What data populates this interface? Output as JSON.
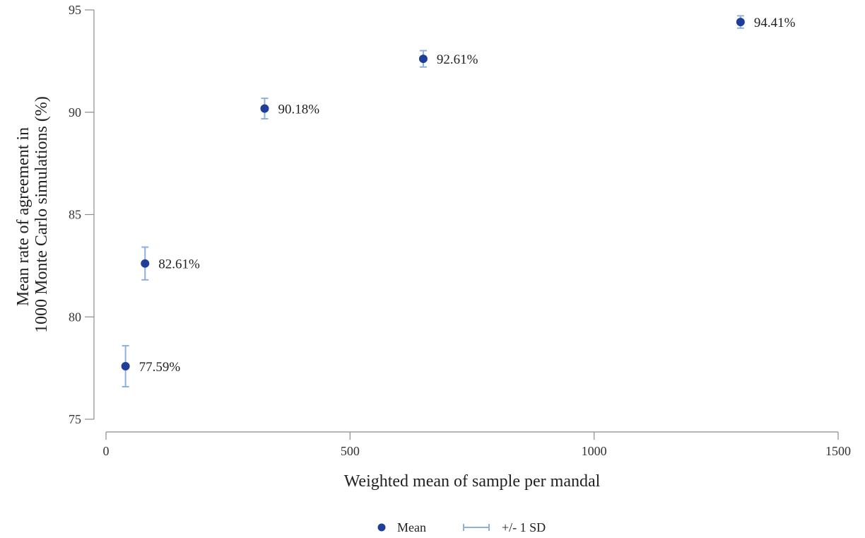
{
  "chart_data": {
    "type": "scatter",
    "xlabel": "Weighted mean of sample per mandal",
    "ylabel_lines": [
      "Mean rate of agreement in",
      "1000 Monte Carlo simulations (%)"
    ],
    "xlim": [
      0,
      1500
    ],
    "ylim": [
      75,
      95
    ],
    "x_ticks": [
      0,
      500,
      1000,
      1500
    ],
    "y_ticks": [
      75,
      80,
      85,
      90,
      95
    ],
    "grid": false,
    "points": [
      {
        "x": 40,
        "mean": 77.59,
        "sd": 1.0,
        "label": "77.59%"
      },
      {
        "x": 80,
        "mean": 82.61,
        "sd": 0.8,
        "label": "82.61%"
      },
      {
        "x": 325,
        "mean": 90.18,
        "sd": 0.5,
        "label": "90.18%"
      },
      {
        "x": 650,
        "mean": 92.61,
        "sd": 0.4,
        "label": "92.61%"
      },
      {
        "x": 1300,
        "mean": 94.41,
        "sd": 0.3,
        "label": "94.41%"
      }
    ],
    "legend": {
      "position": "bottom",
      "entries": [
        {
          "label": "Mean",
          "symbol": "point"
        },
        {
          "label": "+/- 1 SD",
          "symbol": "errorbar"
        }
      ]
    },
    "colors": {
      "mean": "#1f3e99",
      "errorbar": "#8eb0dc",
      "axis": "#8c8c8c"
    }
  }
}
